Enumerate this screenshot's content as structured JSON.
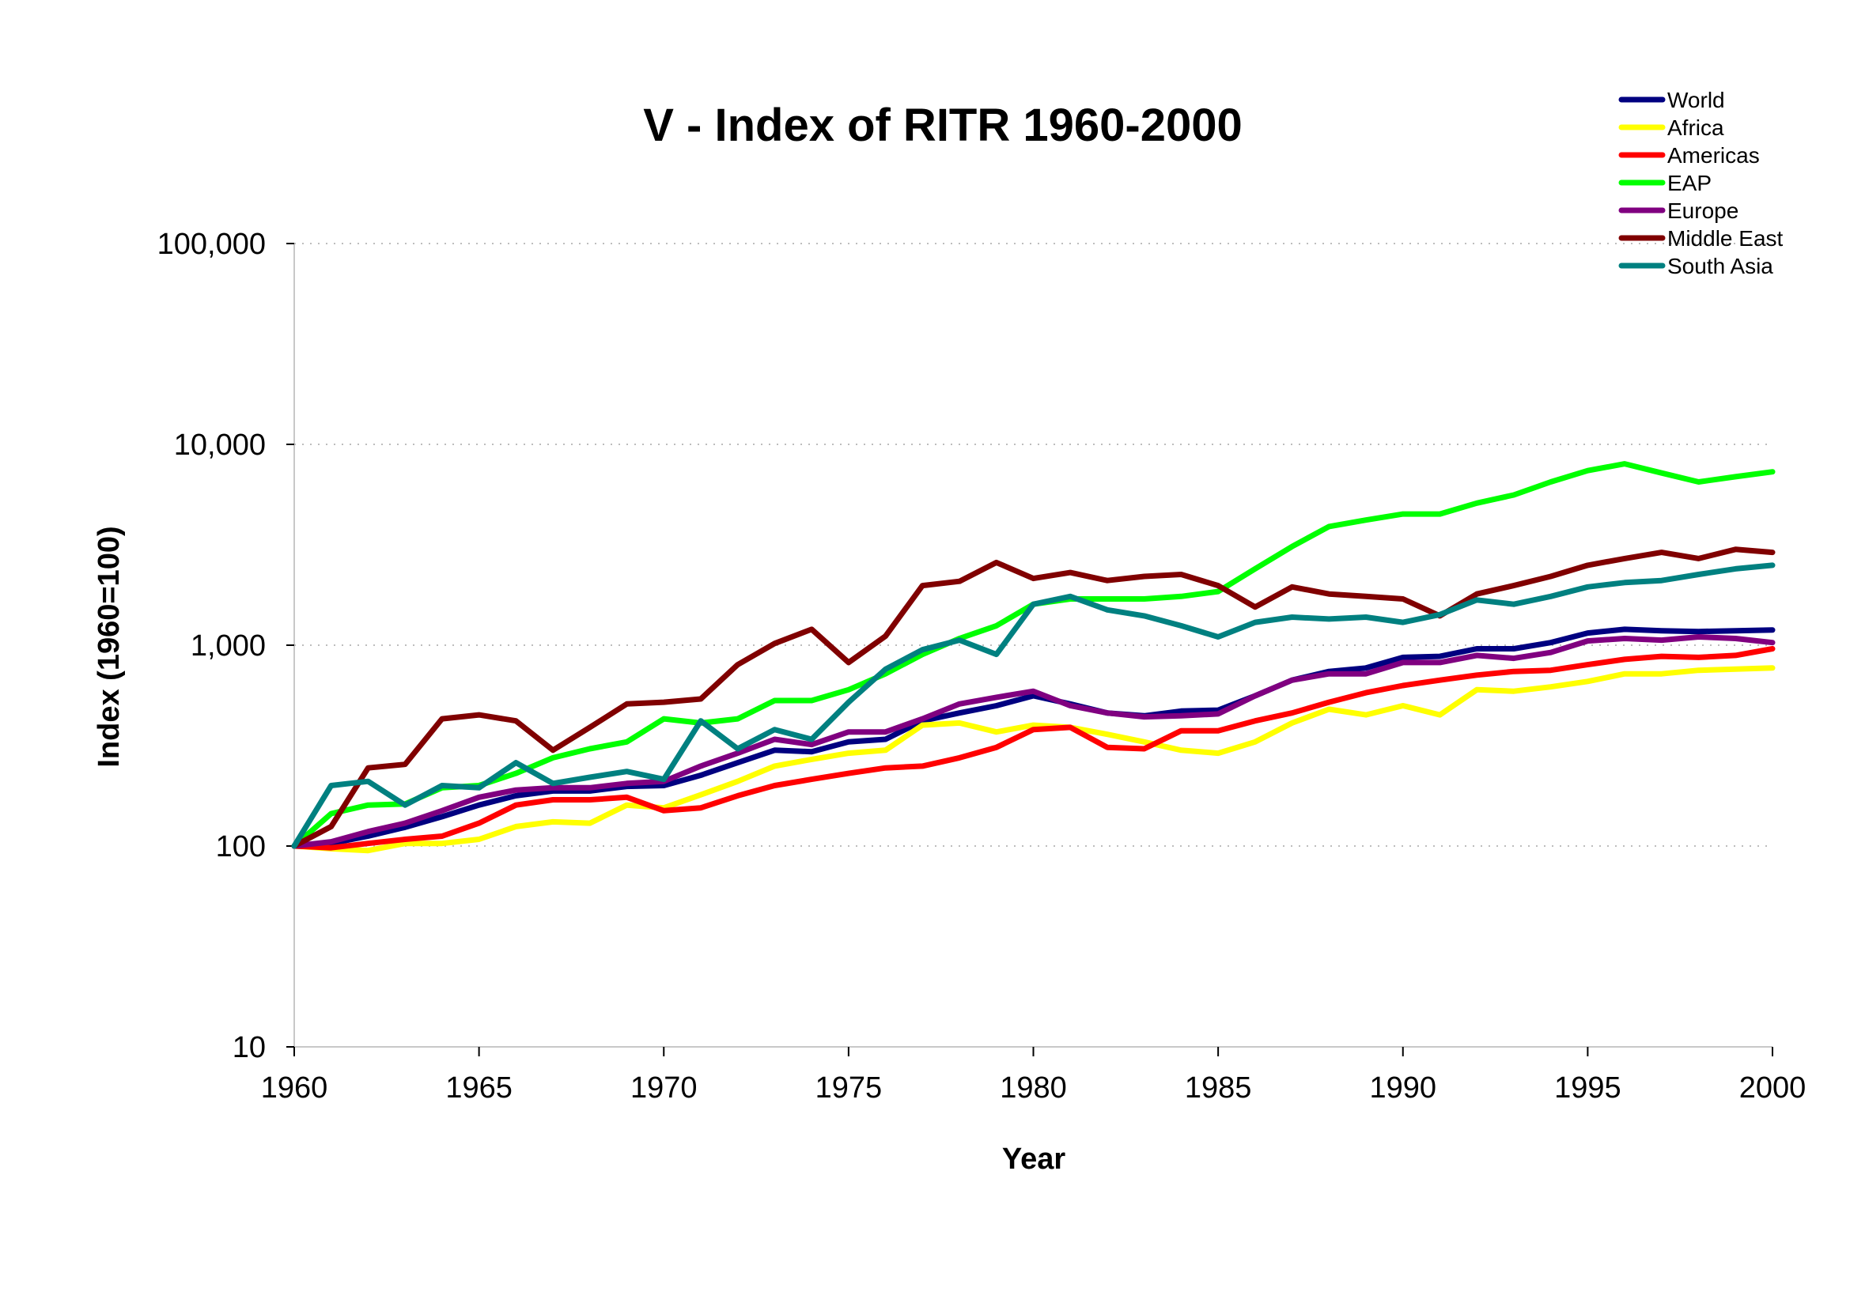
{
  "chart_data": {
    "type": "line",
    "title": "V - Index of RITR 1960-2000",
    "xlabel": "Year",
    "ylabel": "Index (1960=100)",
    "yscale": "log",
    "xlim": [
      1960,
      2000
    ],
    "ylim": [
      10,
      100000
    ],
    "x_ticks": [
      1960,
      1965,
      1970,
      1975,
      1980,
      1985,
      1990,
      1995,
      2000
    ],
    "x_tick_labels": [
      "1960",
      "1965",
      "1970",
      "1975",
      "1980",
      "1985",
      "1990",
      "1995",
      "2000"
    ],
    "y_ticks": [
      10,
      100,
      1000,
      10000,
      100000
    ],
    "y_tick_labels": [
      "10",
      "100",
      "1,000",
      "10,000",
      "100,000"
    ],
    "grid": "horizontal dotted",
    "legend_position": "top-right",
    "x": [
      1960,
      1961,
      1962,
      1963,
      1964,
      1965,
      1966,
      1967,
      1968,
      1969,
      1970,
      1971,
      1972,
      1973,
      1974,
      1975,
      1976,
      1977,
      1978,
      1979,
      1980,
      1981,
      1982,
      1983,
      1984,
      1985,
      1986,
      1987,
      1988,
      1989,
      1990,
      1991,
      1992,
      1993,
      1994,
      1995,
      1996,
      1997,
      1998,
      1999,
      2000
    ],
    "series": [
      {
        "name": "World",
        "color": "#000080",
        "values": [
          100,
          103,
          112,
          124,
          140,
          160,
          178,
          188,
          188,
          198,
          200,
          225,
          260,
          300,
          295,
          330,
          340,
          420,
          460,
          500,
          560,
          510,
          460,
          445,
          470,
          475,
          560,
          670,
          740,
          770,
          870,
          880,
          960,
          960,
          1030,
          1150,
          1200,
          1180,
          1170,
          1180,
          1190
        ]
      },
      {
        "name": "Africa",
        "color": "#ffff00",
        "values": [
          100,
          97,
          95,
          103,
          103,
          108,
          125,
          132,
          130,
          160,
          155,
          180,
          210,
          250,
          270,
          290,
          300,
          400,
          410,
          370,
          400,
          390,
          360,
          330,
          300,
          290,
          330,
          410,
          480,
          450,
          500,
          450,
          600,
          590,
          620,
          660,
          720,
          720,
          750,
          760,
          770
        ]
      },
      {
        "name": "Americas",
        "color": "#ff0000",
        "values": [
          100,
          98,
          103,
          108,
          112,
          130,
          160,
          170,
          170,
          175,
          150,
          155,
          178,
          200,
          215,
          230,
          245,
          250,
          275,
          310,
          380,
          390,
          310,
          305,
          375,
          375,
          420,
          460,
          520,
          580,
          630,
          670,
          710,
          740,
          750,
          800,
          850,
          880,
          870,
          890,
          960
        ]
      },
      {
        "name": "EAP",
        "color": "#00ff00",
        "values": [
          100,
          145,
          160,
          162,
          195,
          200,
          230,
          275,
          305,
          330,
          430,
          410,
          430,
          530,
          530,
          600,
          720,
          900,
          1080,
          1250,
          1600,
          1700,
          1700,
          1700,
          1750,
          1850,
          2400,
          3100,
          3900,
          4200,
          4500,
          4500,
          5100,
          5600,
          6500,
          7400,
          8000,
          7200,
          6500,
          6900,
          7300
        ]
      },
      {
        "name": "Europe",
        "color": "#800080",
        "values": [
          100,
          105,
          118,
          130,
          150,
          175,
          190,
          195,
          195,
          205,
          210,
          250,
          290,
          340,
          320,
          370,
          370,
          430,
          510,
          550,
          590,
          500,
          460,
          440,
          445,
          455,
          560,
          670,
          720,
          720,
          820,
          820,
          890,
          860,
          920,
          1050,
          1080,
          1060,
          1100,
          1080,
          1030
        ]
      },
      {
        "name": "Middle East",
        "color": "#800000",
        "values": [
          100,
          125,
          245,
          255,
          430,
          450,
          420,
          300,
          390,
          510,
          520,
          540,
          800,
          1020,
          1200,
          820,
          1110,
          1980,
          2080,
          2580,
          2150,
          2300,
          2100,
          2200,
          2250,
          1980,
          1550,
          1950,
          1800,
          1750,
          1700,
          1400,
          1800,
          1980,
          2200,
          2500,
          2700,
          2900,
          2700,
          3000,
          2900
        ]
      },
      {
        "name": "South Asia",
        "color": "#008080",
        "values": [
          100,
          200,
          210,
          160,
          200,
          195,
          260,
          205,
          220,
          235,
          215,
          420,
          305,
          380,
          340,
          520,
          760,
          950,
          1060,
          900,
          1600,
          1750,
          1500,
          1400,
          1250,
          1100,
          1300,
          1380,
          1350,
          1380,
          1300,
          1420,
          1680,
          1600,
          1750,
          1950,
          2050,
          2100,
          2250,
          2400,
          2500
        ]
      }
    ]
  }
}
